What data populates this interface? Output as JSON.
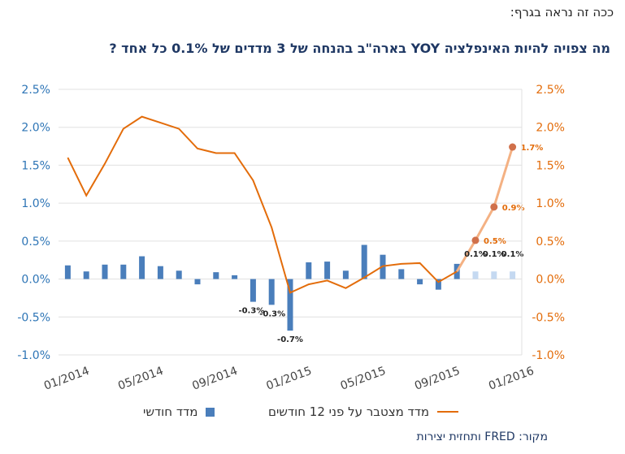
{
  "caption": "ככה זה נראה בגרף:",
  "title": "מה צפויה להיות האינפלציה YOY בארה\"ב בהנחה של 3 מדדים של 0.1% כל אחד ?",
  "source": "מקור: FRED ותחזית יצירות",
  "colors": {
    "bars": "#4a7ebb",
    "bars_forecast": "#c5d9f1",
    "line": "#e36c0a",
    "line_forecast": "#f4b183",
    "left_axis": "#2e75b6",
    "right_axis": "#e36c0a",
    "grid": "#e0e0e0"
  },
  "legend": {
    "bars_label": "מדד חודשי",
    "line_label": "מדד מצטבר על פני 12 חודשים"
  },
  "chart_data": {
    "type": "bar+line",
    "x_tick_labels": [
      "01/2014",
      "05/2014",
      "09/2014",
      "01/2015",
      "05/2015",
      "09/2015",
      "01/2016"
    ],
    "left_axis": {
      "ylim": [
        -1.0,
        2.5
      ],
      "ticks": [
        "-1.0%",
        "-0.5%",
        "0.0%",
        "0.5%",
        "1.0%",
        "1.5%",
        "2.0%",
        "2.5%"
      ]
    },
    "right_axis": {
      "ylim": [
        -1.0,
        2.5
      ],
      "ticks": [
        "-1.0%",
        "-0.5%",
        "0.0%",
        "0.5%",
        "1.0%",
        "1.5%",
        "2.0%",
        "2.5%"
      ]
    },
    "series": [
      {
        "name": "מדד חודשי",
        "kind": "bar",
        "values": [
          0.18,
          0.1,
          0.19,
          0.19,
          0.3,
          0.17,
          0.11,
          -0.07,
          0.09,
          0.05,
          -0.3,
          -0.34,
          -0.68,
          0.22,
          0.23,
          0.11,
          0.45,
          0.32,
          0.13,
          -0.07,
          -0.14,
          0.2,
          0.1,
          0.1,
          0.1
        ],
        "forecast_from_index": 22,
        "labels": {
          "10": "-0.3%",
          "11": "-0.3%",
          "12": "-0.7%",
          "22": "0.1%",
          "23": "0.1%",
          "24": "0.1%"
        }
      },
      {
        "name": "מדד מצטבר על פני 12 חודשים",
        "kind": "line",
        "values": [
          1.6,
          1.1,
          1.52,
          1.98,
          2.14,
          2.06,
          1.98,
          1.72,
          1.66,
          1.66,
          1.3,
          0.68,
          -0.18,
          -0.07,
          -0.02,
          -0.12,
          0.02,
          0.17,
          0.2,
          0.21,
          -0.04,
          0.1,
          0.51,
          0.95,
          1.74
        ],
        "forecast_from_index": 21,
        "labels": {
          "22": "0.5%",
          "23": "0.9%",
          "24": "1.7%"
        }
      }
    ],
    "grid": "horizontal"
  }
}
